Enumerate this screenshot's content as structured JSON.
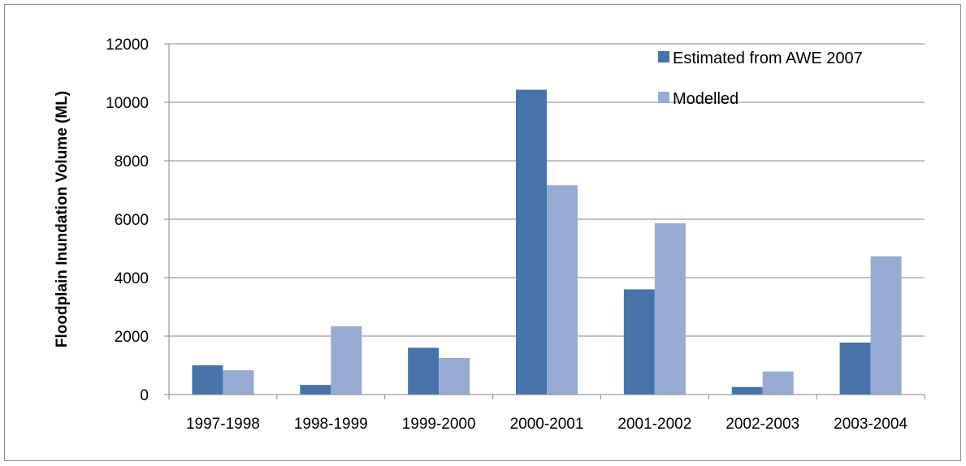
{
  "chart_data": {
    "type": "bar",
    "title": "",
    "xlabel": "",
    "ylabel": "Floodplain Inundation Volume (ML)",
    "categories": [
      "1997-1998",
      "1998-1999",
      "1999-2000",
      "2000-2001",
      "2001-2002",
      "2002-2003",
      "2003-2004"
    ],
    "series": [
      {
        "name": "Estimated from AWE 2007",
        "color": "#4674A8",
        "values": [
          1000,
          330,
          1600,
          10430,
          3600,
          260,
          1780
        ]
      },
      {
        "name": "Modelled",
        "color": "#98ABD3",
        "values": [
          830,
          2340,
          1250,
          7160,
          5860,
          790,
          4730
        ]
      }
    ],
    "ylim": [
      0,
      12000
    ],
    "yticks": [
      0,
      2000,
      4000,
      6000,
      8000,
      10000,
      12000
    ],
    "grid": true,
    "legend": "top-right"
  }
}
